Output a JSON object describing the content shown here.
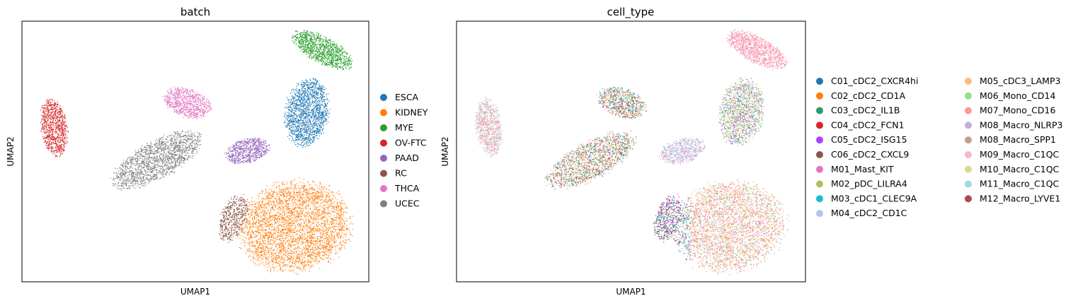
{
  "chart_data": [
    {
      "type": "scatter",
      "title": "batch",
      "xlabel": "UMAP1",
      "ylabel": "UMAP2",
      "legend_placement": "right",
      "legend_columns": 1,
      "series": [
        {
          "name": "ESCA",
          "color": "#1f77b4"
        },
        {
          "name": "KIDNEY",
          "color": "#ff7f0e"
        },
        {
          "name": "MYE",
          "color": "#2ca02c"
        },
        {
          "name": "OV-FTC",
          "color": "#d62728"
        },
        {
          "name": "PAAD",
          "color": "#9467bd"
        },
        {
          "name": "RC",
          "color": "#8c564b"
        },
        {
          "name": "THCA",
          "color": "#e377c2"
        },
        {
          "name": "UCEC",
          "color": "#7f7f7f"
        }
      ]
    },
    {
      "type": "scatter",
      "title": "cell_type",
      "xlabel": "UMAP1",
      "ylabel": "UMAP2",
      "legend_placement": "right",
      "legend_columns": 2,
      "series": [
        {
          "name": "C01_cDC2_CXCR4hi",
          "color": "#1f77b4"
        },
        {
          "name": "C02_cDC2_CD1A",
          "color": "#ff7f0e"
        },
        {
          "name": "C03_cDC2_IL1B",
          "color": "#279e68"
        },
        {
          "name": "C04_cDC2_FCN1",
          "color": "#d62728"
        },
        {
          "name": "C05_cDC2_ISG15",
          "color": "#aa40fc"
        },
        {
          "name": "C06_cDC2_CXCL9",
          "color": "#8c564b"
        },
        {
          "name": "M01_Mast_KIT",
          "color": "#e377c2"
        },
        {
          "name": "M02_pDC_LILRA4",
          "color": "#b5bd61"
        },
        {
          "name": "M03_cDC1_CLEC9A",
          "color": "#17becf"
        },
        {
          "name": "M04_cDC2_CD1C",
          "color": "#aec7e8"
        },
        {
          "name": "M05_cDC3_LAMP3",
          "color": "#ffbb78"
        },
        {
          "name": "M06_Mono_CD14",
          "color": "#98df8a"
        },
        {
          "name": "M07_Mono_CD16",
          "color": "#ff9896"
        },
        {
          "name": "M08_Macro_NLRP3",
          "color": "#c5b0d5"
        },
        {
          "name": "M08_Macro_SPP1",
          "color": "#c49c94"
        },
        {
          "name": "M09_Macro_C1QC",
          "color": "#f7b6d2"
        },
        {
          "name": "M10_Macro_C1QC",
          "color": "#dbdb8d"
        },
        {
          "name": "M11_Macro_C1QC",
          "color": "#9edae5"
        },
        {
          "name": "M12_Macro_LYVE1",
          "color": "#ad494a"
        }
      ]
    }
  ]
}
